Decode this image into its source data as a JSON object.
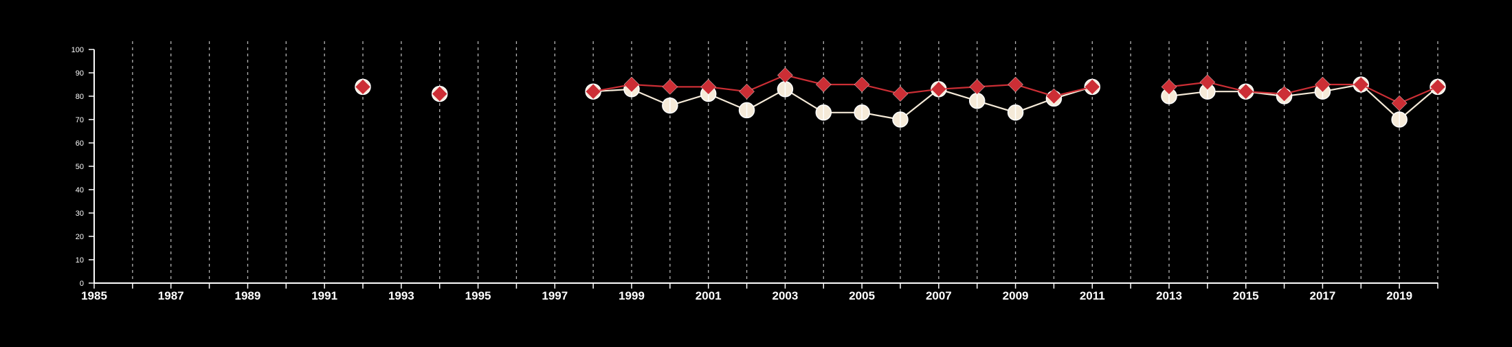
{
  "chart_data": {
    "type": "line",
    "title": "",
    "xlabel": "",
    "ylabel": "",
    "xlim": [
      1985,
      2020
    ],
    "ylim": [
      0,
      100
    ],
    "x_ticks": [
      1985,
      1987,
      1989,
      1991,
      1993,
      1995,
      1997,
      1999,
      2001,
      2003,
      2005,
      2007,
      2009,
      2011,
      2013,
      2015,
      2017,
      2019
    ],
    "y_ticks": [
      0,
      10,
      20,
      30,
      40,
      50,
      60,
      70,
      80,
      90,
      100
    ],
    "grid": "vertical dashed lines at every year",
    "legend": "none",
    "series": [
      {
        "color": "#f5ead8",
        "marker": "circle",
        "points": [
          {
            "x": 1992,
            "y": 84
          },
          {
            "x": 1994,
            "y": 81
          },
          {
            "x": 1998,
            "y": 82
          },
          {
            "x": 1999,
            "y": 83
          },
          {
            "x": 2000,
            "y": 76
          },
          {
            "x": 2001,
            "y": 81
          },
          {
            "x": 2002,
            "y": 74
          },
          {
            "x": 2003,
            "y": 83
          },
          {
            "x": 2004,
            "y": 73
          },
          {
            "x": 2005,
            "y": 73
          },
          {
            "x": 2006,
            "y": 70
          },
          {
            "x": 2007,
            "y": 83
          },
          {
            "x": 2008,
            "y": 78
          },
          {
            "x": 2009,
            "y": 73
          },
          {
            "x": 2010,
            "y": 79
          },
          {
            "x": 2011,
            "y": 84
          },
          {
            "x": 2013,
            "y": 80
          },
          {
            "x": 2014,
            "y": 82
          },
          {
            "x": 2015,
            "y": 82
          },
          {
            "x": 2016,
            "y": 80
          },
          {
            "x": 2017,
            "y": 82
          },
          {
            "x": 2018,
            "y": 85
          },
          {
            "x": 2019,
            "y": 70
          },
          {
            "x": 2020,
            "y": 84
          }
        ]
      },
      {
        "color": "#cc2e35",
        "marker": "diamond",
        "points": [
          {
            "x": 1992,
            "y": 84
          },
          {
            "x": 1994,
            "y": 81
          },
          {
            "x": 1998,
            "y": 82
          },
          {
            "x": 1999,
            "y": 85
          },
          {
            "x": 2000,
            "y": 84
          },
          {
            "x": 2001,
            "y": 84
          },
          {
            "x": 2002,
            "y": 82
          },
          {
            "x": 2003,
            "y": 89
          },
          {
            "x": 2004,
            "y": 85
          },
          {
            "x": 2005,
            "y": 85
          },
          {
            "x": 2006,
            "y": 81
          },
          {
            "x": 2007,
            "y": 83
          },
          {
            "x": 2008,
            "y": 84
          },
          {
            "x": 2009,
            "y": 85
          },
          {
            "x": 2010,
            "y": 80
          },
          {
            "x": 2011,
            "y": 84
          },
          {
            "x": 2013,
            "y": 84
          },
          {
            "x": 2014,
            "y": 86
          },
          {
            "x": 2015,
            "y": 82
          },
          {
            "x": 2016,
            "y": 81
          },
          {
            "x": 2017,
            "y": 85
          },
          {
            "x": 2018,
            "y": 85
          },
          {
            "x": 2019,
            "y": 77
          },
          {
            "x": 2020,
            "y": 84
          }
        ]
      }
    ]
  }
}
